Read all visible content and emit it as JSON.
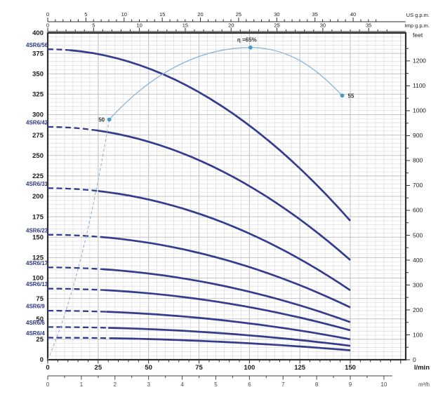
{
  "colors": {
    "curve": "#333c8d",
    "curve_label": "#2c3587",
    "efficiency_line": "#8ab6da",
    "efficiency_dot": "#4699cc",
    "efficiency_label": "#333333",
    "grid_minor": "#dcdcdc",
    "grid_major": "#c2c2c2",
    "frame": "#2f2f2f",
    "axis_text": "#1a1a1a",
    "axis_text_secondary": "#444444",
    "background": "#ffffff"
  },
  "chart_data": {
    "type": "line",
    "x_axis_lmin": {
      "unit_label": "l/min",
      "tick_values": [
        0,
        25,
        50,
        75,
        100,
        125,
        150
      ],
      "tick_labels": [
        "0",
        "25",
        "50",
        "75",
        "100",
        "125",
        "150"
      ],
      "minor_step": 5,
      "plot_max": 177.5
    },
    "x_axis_m3h": {
      "unit_label": "m³/h",
      "tick_values": [
        0,
        1,
        2,
        3,
        4,
        5,
        6,
        7,
        8,
        9,
        10
      ],
      "tick_labels": [
        "0",
        "1",
        "2",
        "3",
        "4",
        "5",
        "6",
        "7",
        "8",
        "9",
        "10"
      ],
      "minor_step": 0.5,
      "lmin_per_unit": 16.6667
    },
    "top_axis_us_gpm": {
      "unit_label": "US g.p.m.",
      "tick_values": [
        0,
        5,
        10,
        15,
        20,
        25,
        30,
        35,
        40
      ],
      "tick_labels": [
        "0",
        "5",
        "10",
        "15",
        "20",
        "25",
        "30",
        "35",
        "40"
      ],
      "minor_step": 1,
      "minor_max": 43,
      "lmin_per_unit": 3.7854
    },
    "top_axis_imp_gpm": {
      "unit_label": "Imp g.p.m.",
      "tick_values": [
        0,
        5,
        10,
        15,
        20,
        25,
        30,
        35
      ],
      "tick_labels": [
        "0",
        "5",
        "10",
        "15",
        "20",
        "25",
        "30",
        "35"
      ],
      "minor_step": 1,
      "minor_max": 37,
      "lmin_per_unit": 4.5461
    },
    "y_axis_m": {
      "tick_values": [
        0,
        25,
        50,
        75,
        100,
        125,
        150,
        175,
        200,
        225,
        250,
        275,
        300,
        325,
        350,
        375,
        400
      ],
      "tick_labels": [
        "0",
        "25",
        "50",
        "75",
        "100",
        "125",
        "150",
        "175",
        "200",
        "225",
        "250",
        "275",
        "300",
        "325",
        "350",
        "375",
        "400"
      ],
      "minor_step": 5,
      "max": 400
    },
    "y_axis_feet": {
      "unit_label": "feet",
      "tick_values": [
        0,
        100,
        200,
        300,
        400,
        500,
        600,
        700,
        800,
        900,
        1000,
        1100,
        1200
      ],
      "tick_labels": [
        "0",
        "100",
        "200",
        "300",
        "400",
        "500",
        "600",
        "700",
        "800",
        "900",
        "1000",
        "1100",
        "1200"
      ],
      "minor_step": 50,
      "minor_max": 1250,
      "m_per_unit": 0.3048
    },
    "q_curve_end_lmin": 150,
    "head_curves": [
      {
        "name": "4SR6/56",
        "h_at_0_lmin": 380,
        "h_at_150_lmin": 170,
        "solid_from_lmin": 11
      },
      {
        "name": "4SR6/42",
        "h_at_0_lmin": 285,
        "h_at_150_lmin": 122,
        "solid_from_lmin": 24
      },
      {
        "name": "4SR6/31",
        "h_at_0_lmin": 210,
        "h_at_150_lmin": 85,
        "solid_from_lmin": 25
      },
      {
        "name": "4SR6/23",
        "h_at_0_lmin": 153,
        "h_at_150_lmin": 64,
        "solid_from_lmin": 26
      },
      {
        "name": "4SR6/17",
        "h_at_0_lmin": 113,
        "h_at_150_lmin": 46,
        "solid_from_lmin": 27
      },
      {
        "name": "4SR6/13",
        "h_at_0_lmin": 87,
        "h_at_150_lmin": 36,
        "solid_from_lmin": 28
      },
      {
        "name": "4SR6/9",
        "h_at_0_lmin": 60,
        "h_at_150_lmin": 25,
        "solid_from_lmin": 29
      },
      {
        "name": "4SR6/6",
        "h_at_0_lmin": 40,
        "h_at_150_lmin": 17,
        "solid_from_lmin": 30
      },
      {
        "name": "4SR6/4",
        "h_at_0_lmin": 27,
        "h_at_150_lmin": 11.5,
        "solid_from_lmin": 31
      }
    ],
    "efficiency_curve": {
      "points": [
        {
          "q_lmin": 0,
          "eta_pct": 0
        },
        {
          "q_lmin": 30.5,
          "eta_pct": 50,
          "marker_label": "50",
          "label_side": "left"
        },
        {
          "q_lmin": 100.5,
          "eta_pct": 65,
          "marker_label": "η =65%",
          "label_side": "top"
        },
        {
          "q_lmin": 146,
          "eta_pct": 55,
          "marker_label": "55",
          "label_side": "right"
        }
      ],
      "dashed_below_eta_pct": 50
    }
  }
}
